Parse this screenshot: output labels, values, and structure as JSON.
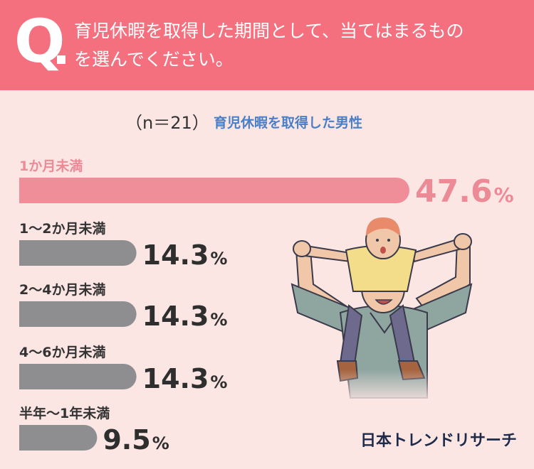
{
  "header": {
    "q_mark": "Q",
    "question_line1": "育児休暇を取得した期間として、当てはまるもの",
    "question_line2": "を選んでください。"
  },
  "sample_size": "（n＝21）",
  "legend_label": "育児休暇を取得した男性",
  "brand_logo": "日本トレンドリサーチ",
  "illustration": "father-carrying-child-on-shoulders",
  "colors": {
    "header": "#f4707f",
    "background": "#fbe6e4",
    "highlight_bar": "#ef8d98",
    "other_bar": "#8e8e90",
    "highlight_text": "#ec8a96",
    "legend_text": "#4a7fc8"
  },
  "chart_data": {
    "type": "bar",
    "orientation": "horizontal",
    "categories": [
      "1か月未満",
      "1〜2か月未満",
      "2〜4か月未満",
      "4〜6か月未満",
      "半年〜1年未満"
    ],
    "values": [
      47.6,
      14.3,
      14.3,
      14.3,
      9.5
    ],
    "value_labels": [
      "47.6",
      "14.3",
      "14.3",
      "14.3",
      "9.5"
    ],
    "unit": "%",
    "highlight_index": 0,
    "series": [
      {
        "name": "育児休暇を取得した男性",
        "values": [
          47.6,
          14.3,
          14.3,
          14.3,
          9.5
        ]
      }
    ]
  }
}
